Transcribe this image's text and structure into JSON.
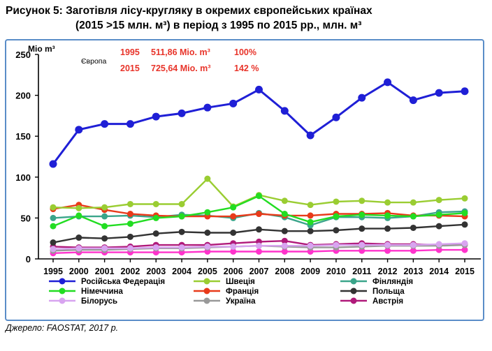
{
  "title_line1": "Рисунок 5: Заготівля лісу-кругляку в окремих європейських країнах",
  "title_line2": "(2015 >15 млн. м³) в період з 1995 по 2015 рр., млн. м³",
  "source": "Джерело: FAOSTAT, 2017 р.",
  "chart_data": {
    "type": "line",
    "ylabel": "Mio m³",
    "ylim": [
      0,
      250
    ],
    "yticks": [
      0,
      50,
      100,
      150,
      200,
      250
    ],
    "grid": false,
    "legend_position": "bottom",
    "categories": [
      "1995",
      "2000",
      "2001",
      "2002",
      "2003",
      "2004",
      "2005",
      "2006",
      "2007",
      "2008",
      "2009",
      "2010",
      "2011",
      "2012",
      "2013",
      "2014",
      "2015"
    ],
    "annotation": {
      "label": "Європа",
      "row1": {
        "year": "1995",
        "value": "511,86 Mio. m³",
        "percent": "100%"
      },
      "row2": {
        "year": "2015",
        "value": "725,64 Mio. m³",
        "percent": "142 %"
      }
    },
    "series": [
      {
        "name": "Російська Федерація",
        "color": "#1f1fd6",
        "values": [
          116,
          158,
          165,
          165,
          174,
          178,
          185,
          190,
          207,
          181,
          151,
          173,
          197,
          216,
          194,
          203,
          205
        ]
      },
      {
        "name": "Німеччина",
        "color": "#22dd22",
        "values": [
          40,
          53,
          40,
          43,
          50,
          52,
          57,
          63,
          77,
          55,
          45,
          52,
          54,
          53,
          52,
          54,
          56
        ]
      },
      {
        "name": "Білорусь",
        "color": "#d8a4f0",
        "values": [
          12,
          13,
          13,
          13,
          14,
          14,
          15,
          15,
          16,
          16,
          16,
          17,
          17,
          17,
          17,
          18,
          19
        ]
      },
      {
        "name": "Швеція",
        "color": "#9acd32",
        "values": [
          63,
          62,
          63,
          67,
          67,
          67,
          98,
          64,
          78,
          71,
          66,
          70,
          71,
          69,
          69,
          72,
          74
        ]
      },
      {
        "name": "Франція",
        "color": "#e83a1a",
        "values": [
          61,
          66,
          60,
          55,
          53,
          52,
          52,
          52,
          55,
          53,
          53,
          55,
          55,
          56,
          53,
          53,
          52
        ]
      },
      {
        "name": "Україна",
        "color": "#999999",
        "values": [
          10,
          11,
          11,
          12,
          13,
          13,
          14,
          15,
          16,
          15,
          14,
          14,
          15,
          16,
          16,
          16,
          17
        ]
      },
      {
        "name": "Фінляндія",
        "color": "#3aa58a",
        "values": [
          50,
          52,
          52,
          53,
          51,
          54,
          53,
          50,
          56,
          51,
          41,
          51,
          51,
          50,
          52,
          57,
          58
        ]
      },
      {
        "name": "Польща",
        "color": "#333333",
        "values": [
          20,
          26,
          25,
          27,
          31,
          33,
          32,
          32,
          36,
          34,
          34,
          35,
          37,
          37,
          38,
          40,
          42
        ]
      },
      {
        "name": "Австрія",
        "color": "#b01a7a",
        "values": [
          15,
          14,
          14,
          15,
          17,
          17,
          17,
          19,
          21,
          22,
          17,
          18,
          19,
          18,
          18,
          17,
          18
        ]
      },
      {
        "name": "",
        "color": "#ff33cc",
        "values": [
          7,
          8,
          8,
          8,
          8,
          8,
          9,
          9,
          9,
          9,
          9,
          10,
          10,
          10,
          10,
          11,
          11
        ]
      }
    ]
  }
}
